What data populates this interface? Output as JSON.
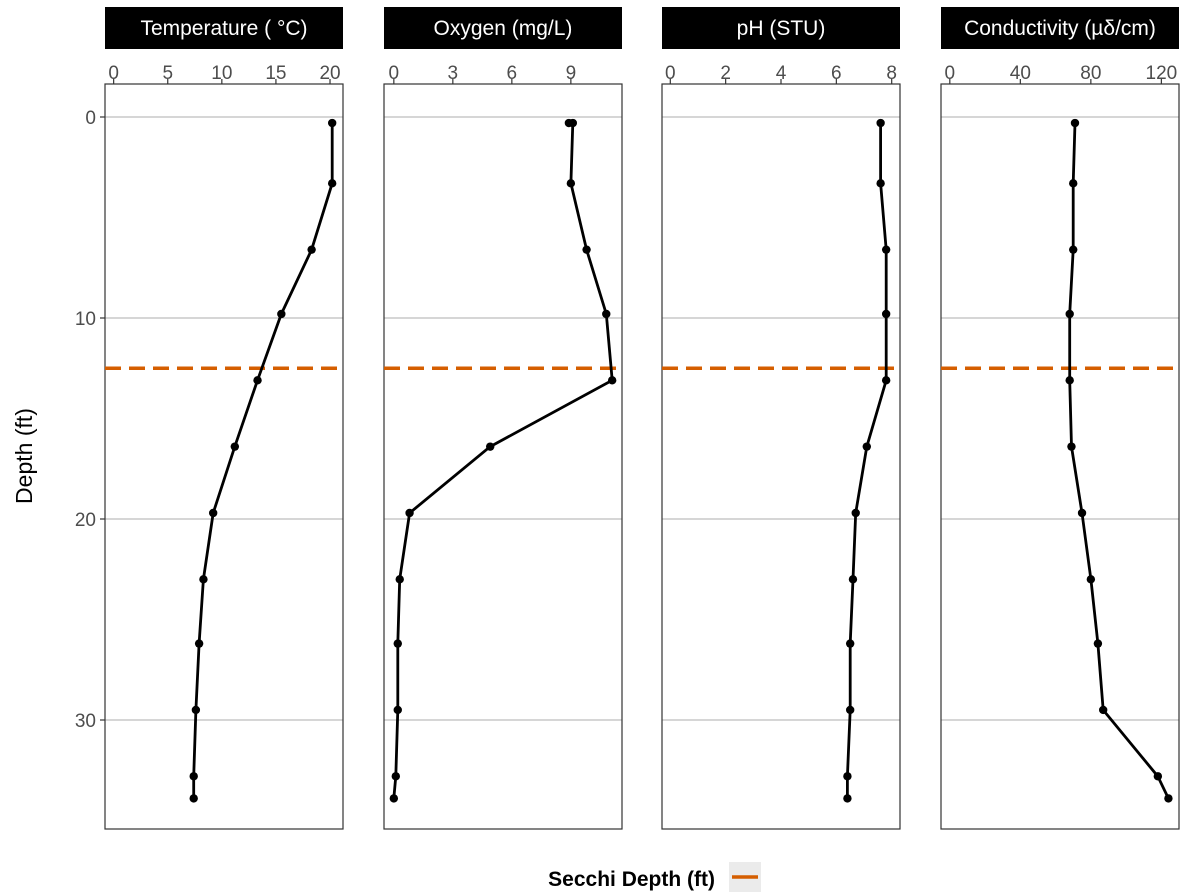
{
  "chart_data": {
    "type": "line",
    "ylabel": "Depth (ft)",
    "y_reversed": true,
    "ylim": [
      0,
      35
    ],
    "yticks": [
      0,
      10,
      20,
      30
    ],
    "grid": "horizontal major",
    "depths": [
      0.3,
      3.3,
      6.6,
      9.8,
      13.1,
      16.4,
      19.7,
      23.0,
      26.2,
      29.5,
      32.8,
      33.9
    ],
    "reference_line": {
      "label": "Secchi Depth (ft)",
      "depth": 12.5,
      "style": "dashed",
      "color": "#D55E00"
    },
    "legend": {
      "title": "Secchi Depth (ft)",
      "position": "bottom"
    },
    "panels": [
      {
        "title": "Temperature ( °C)",
        "xlim": [
          -0.8,
          21.2
        ],
        "xticks": [
          0,
          5,
          10,
          15,
          20
        ],
        "values": [
          20.2,
          20.2,
          18.3,
          15.5,
          13.3,
          11.2,
          9.2,
          8.3,
          7.9,
          7.6,
          7.4,
          7.4
        ]
      },
      {
        "title": "Oxygen (mg/L)",
        "xlim": [
          -0.5,
          11.6
        ],
        "xticks": [
          0,
          3,
          6,
          9
        ],
        "values": [
          9.1,
          9.0,
          9.8,
          10.8,
          11.1,
          4.9,
          0.8,
          0.3,
          0.2,
          0.2,
          0.1,
          0.0
        ],
        "first_point_extra": 8.9
      },
      {
        "title": "pH (STU)",
        "xlim": [
          -0.3,
          8.3
        ],
        "xticks": [
          0,
          2,
          4,
          6,
          8
        ],
        "values": [
          7.6,
          7.6,
          7.8,
          7.8,
          7.8,
          7.1,
          6.7,
          6.6,
          6.5,
          6.5,
          6.4,
          6.4
        ]
      },
      {
        "title": "Conductivity (µδ/cm)",
        "xlim": [
          -5,
          130
        ],
        "xticks": [
          0,
          40,
          80,
          120
        ],
        "values": [
          71,
          70,
          70,
          68,
          68,
          69,
          75,
          80,
          84,
          87,
          118,
          124
        ]
      }
    ]
  }
}
